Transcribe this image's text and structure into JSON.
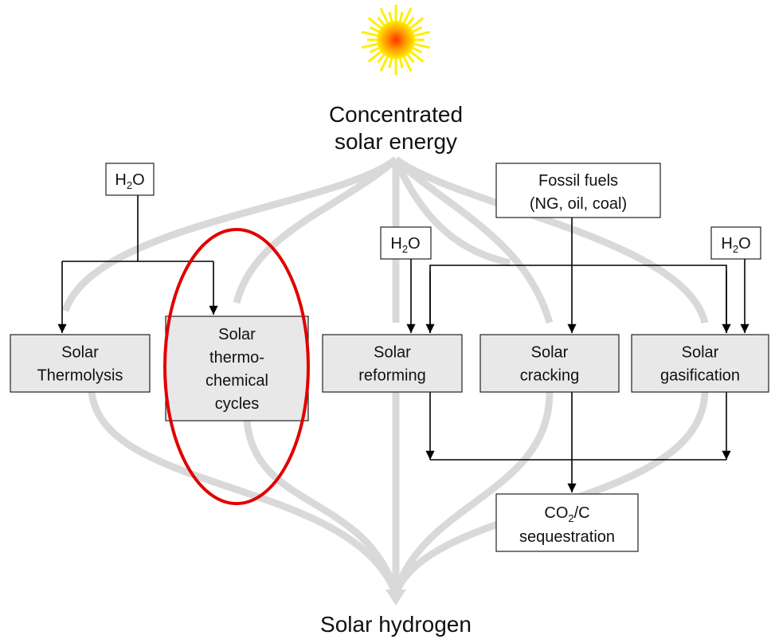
{
  "source": {
    "lines": [
      "Concentrated",
      "solar energy"
    ]
  },
  "product": "Solar hydrogen",
  "inputs": [
    {
      "parts": [
        "H",
        "2",
        "O"
      ]
    },
    {
      "lines": [
        "Fossil fuels",
        "(NG, oil, coal)"
      ]
    },
    {
      "parts": [
        "H",
        "2",
        "O"
      ]
    },
    {
      "parts": [
        "H",
        "2",
        "O"
      ]
    }
  ],
  "processes": [
    {
      "lines": [
        "Solar",
        "Thermolysis"
      ]
    },
    {
      "lines": [
        "Solar",
        "thermo-",
        "chemical",
        "cycles"
      ]
    },
    {
      "lines": [
        "Solar",
        "reforming"
      ]
    },
    {
      "lines": [
        "Solar",
        "cracking"
      ]
    },
    {
      "lines": [
        "Solar",
        "gasification"
      ]
    }
  ],
  "sequestration": {
    "parts": [
      "CO",
      "2",
      "/C"
    ],
    "line2": "sequestration"
  }
}
